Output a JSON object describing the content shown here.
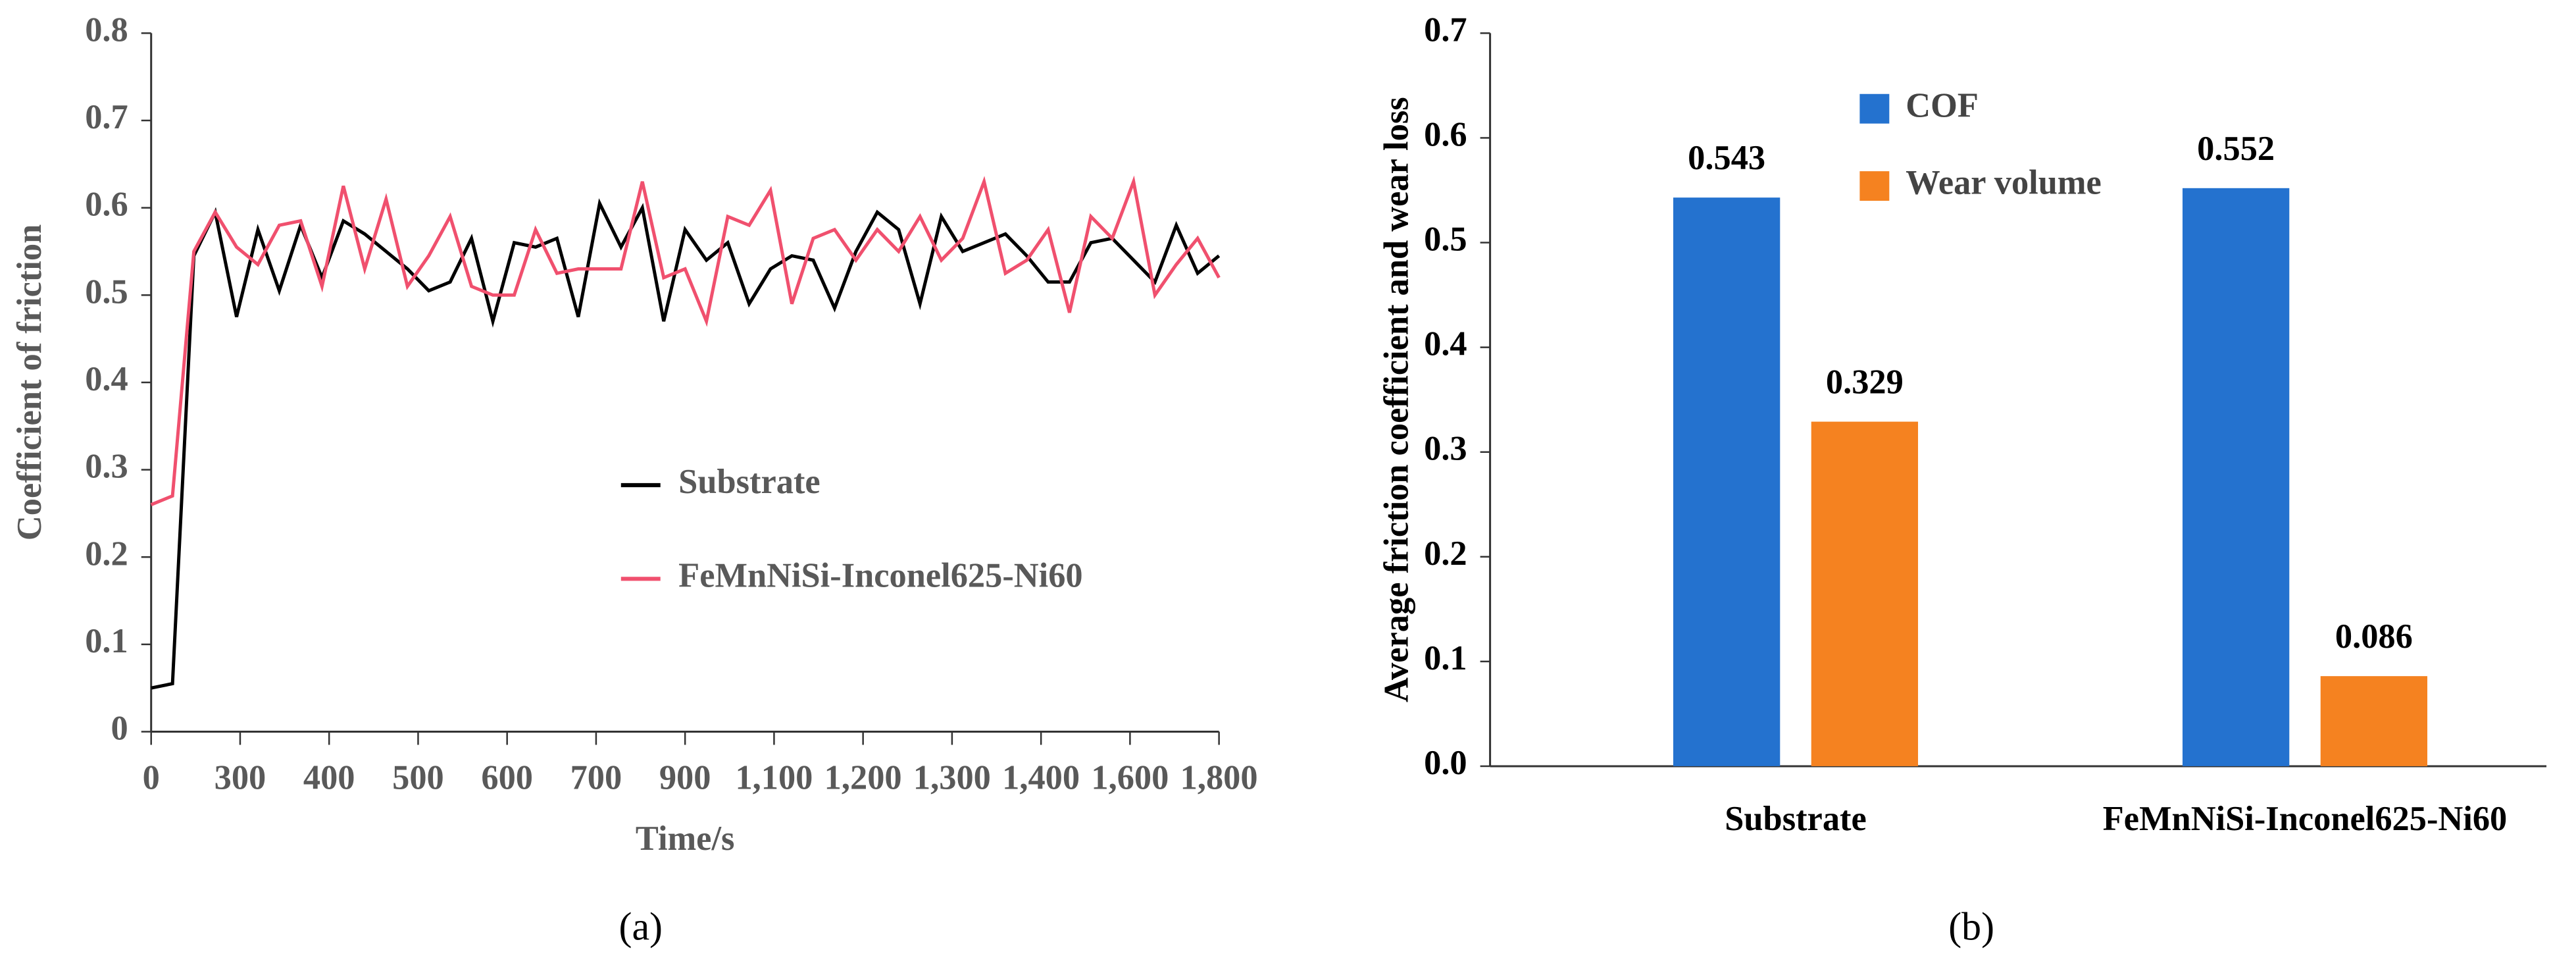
{
  "chart_data": [
    {
      "type": "line",
      "panel_label": "(a)",
      "x_label": "Time/s",
      "y_label": "Coefficient of friction",
      "xlim": [
        0,
        1800
      ],
      "ylim": [
        0,
        0.8
      ],
      "yticks": [
        0,
        0.1,
        0.2,
        0.3,
        0.4,
        0.5,
        0.6,
        0.7,
        0.8
      ],
      "xticks": [
        {
          "value": 0,
          "label": "0"
        },
        {
          "value": 150,
          "label": "300"
        },
        {
          "value": 300,
          "label": "400"
        },
        {
          "value": 450,
          "label": "500"
        },
        {
          "value": 600,
          "label": "600"
        },
        {
          "value": 750,
          "label": "700"
        },
        {
          "value": 900,
          "label": "900"
        },
        {
          "value": 1050,
          "label": "1,100"
        },
        {
          "value": 1200,
          "label": "1,200"
        },
        {
          "value": 1350,
          "label": "1,300"
        },
        {
          "value": 1500,
          "label": "1,400"
        },
        {
          "value": 1650,
          "label": "1,600"
        },
        {
          "value": 1800,
          "label": "1,800"
        }
      ],
      "legend": "center-right",
      "x": [
        0,
        36,
        72,
        108,
        144,
        180,
        216,
        252,
        288,
        324,
        360,
        396,
        432,
        468,
        504,
        540,
        576,
        612,
        648,
        684,
        720,
        756,
        792,
        828,
        864,
        900,
        936,
        972,
        1008,
        1044,
        1080,
        1116,
        1152,
        1188,
        1224,
        1260,
        1296,
        1332,
        1368,
        1404,
        1440,
        1476,
        1512,
        1548,
        1584,
        1620,
        1656,
        1692,
        1728,
        1764,
        1800
      ],
      "series": [
        {
          "name": "Substrate",
          "color": "#000000",
          "values": [
            0.05,
            0.055,
            0.545,
            0.595,
            0.475,
            0.575,
            0.505,
            0.58,
            0.52,
            0.585,
            0.57,
            0.55,
            0.53,
            0.505,
            0.515,
            0.565,
            0.47,
            0.56,
            0.555,
            0.565,
            0.475,
            0.605,
            0.555,
            0.6,
            0.47,
            0.575,
            0.54,
            0.56,
            0.49,
            0.53,
            0.545,
            0.54,
            0.485,
            0.55,
            0.595,
            0.575,
            0.49,
            0.59,
            0.55,
            0.56,
            0.57,
            0.545,
            0.515,
            0.515,
            0.56,
            0.565,
            0.54,
            0.515,
            0.58,
            0.525,
            0.545
          ]
        },
        {
          "name": "FeMnNiSi-Inconel625-Ni60",
          "color": "#f0506e",
          "values": [
            0.26,
            0.27,
            0.55,
            0.595,
            0.555,
            0.535,
            0.58,
            0.585,
            0.51,
            0.625,
            0.53,
            0.61,
            0.51,
            0.545,
            0.59,
            0.51,
            0.5,
            0.5,
            0.575,
            0.525,
            0.53,
            0.53,
            0.53,
            0.63,
            0.52,
            0.53,
            0.47,
            0.59,
            0.58,
            0.62,
            0.49,
            0.565,
            0.575,
            0.54,
            0.575,
            0.55,
            0.59,
            0.54,
            0.565,
            0.63,
            0.525,
            0.54,
            0.575,
            0.48,
            0.59,
            0.565,
            0.63,
            0.5,
            0.535,
            0.565,
            0.52
          ]
        }
      ]
    },
    {
      "type": "bar",
      "panel_label": "(b)",
      "y_label": "Average friction coefficient and wear loss",
      "categories": [
        "Substrate",
        "FeMnNiSi-Inconel625-Ni60"
      ],
      "ylim": [
        0,
        0.7
      ],
      "yticks": [
        {
          "value": 0,
          "label": "0.0"
        },
        0.1,
        0.2,
        0.3,
        0.4,
        0.5,
        0.6,
        0.7
      ],
      "legend": "top-center",
      "series": [
        {
          "name": "COF",
          "color": "#2472cf",
          "values": [
            0.543,
            0.552
          ]
        },
        {
          "name": "Wear volume",
          "color": "#f58220",
          "values": [
            0.329,
            0.086
          ]
        }
      ]
    }
  ]
}
